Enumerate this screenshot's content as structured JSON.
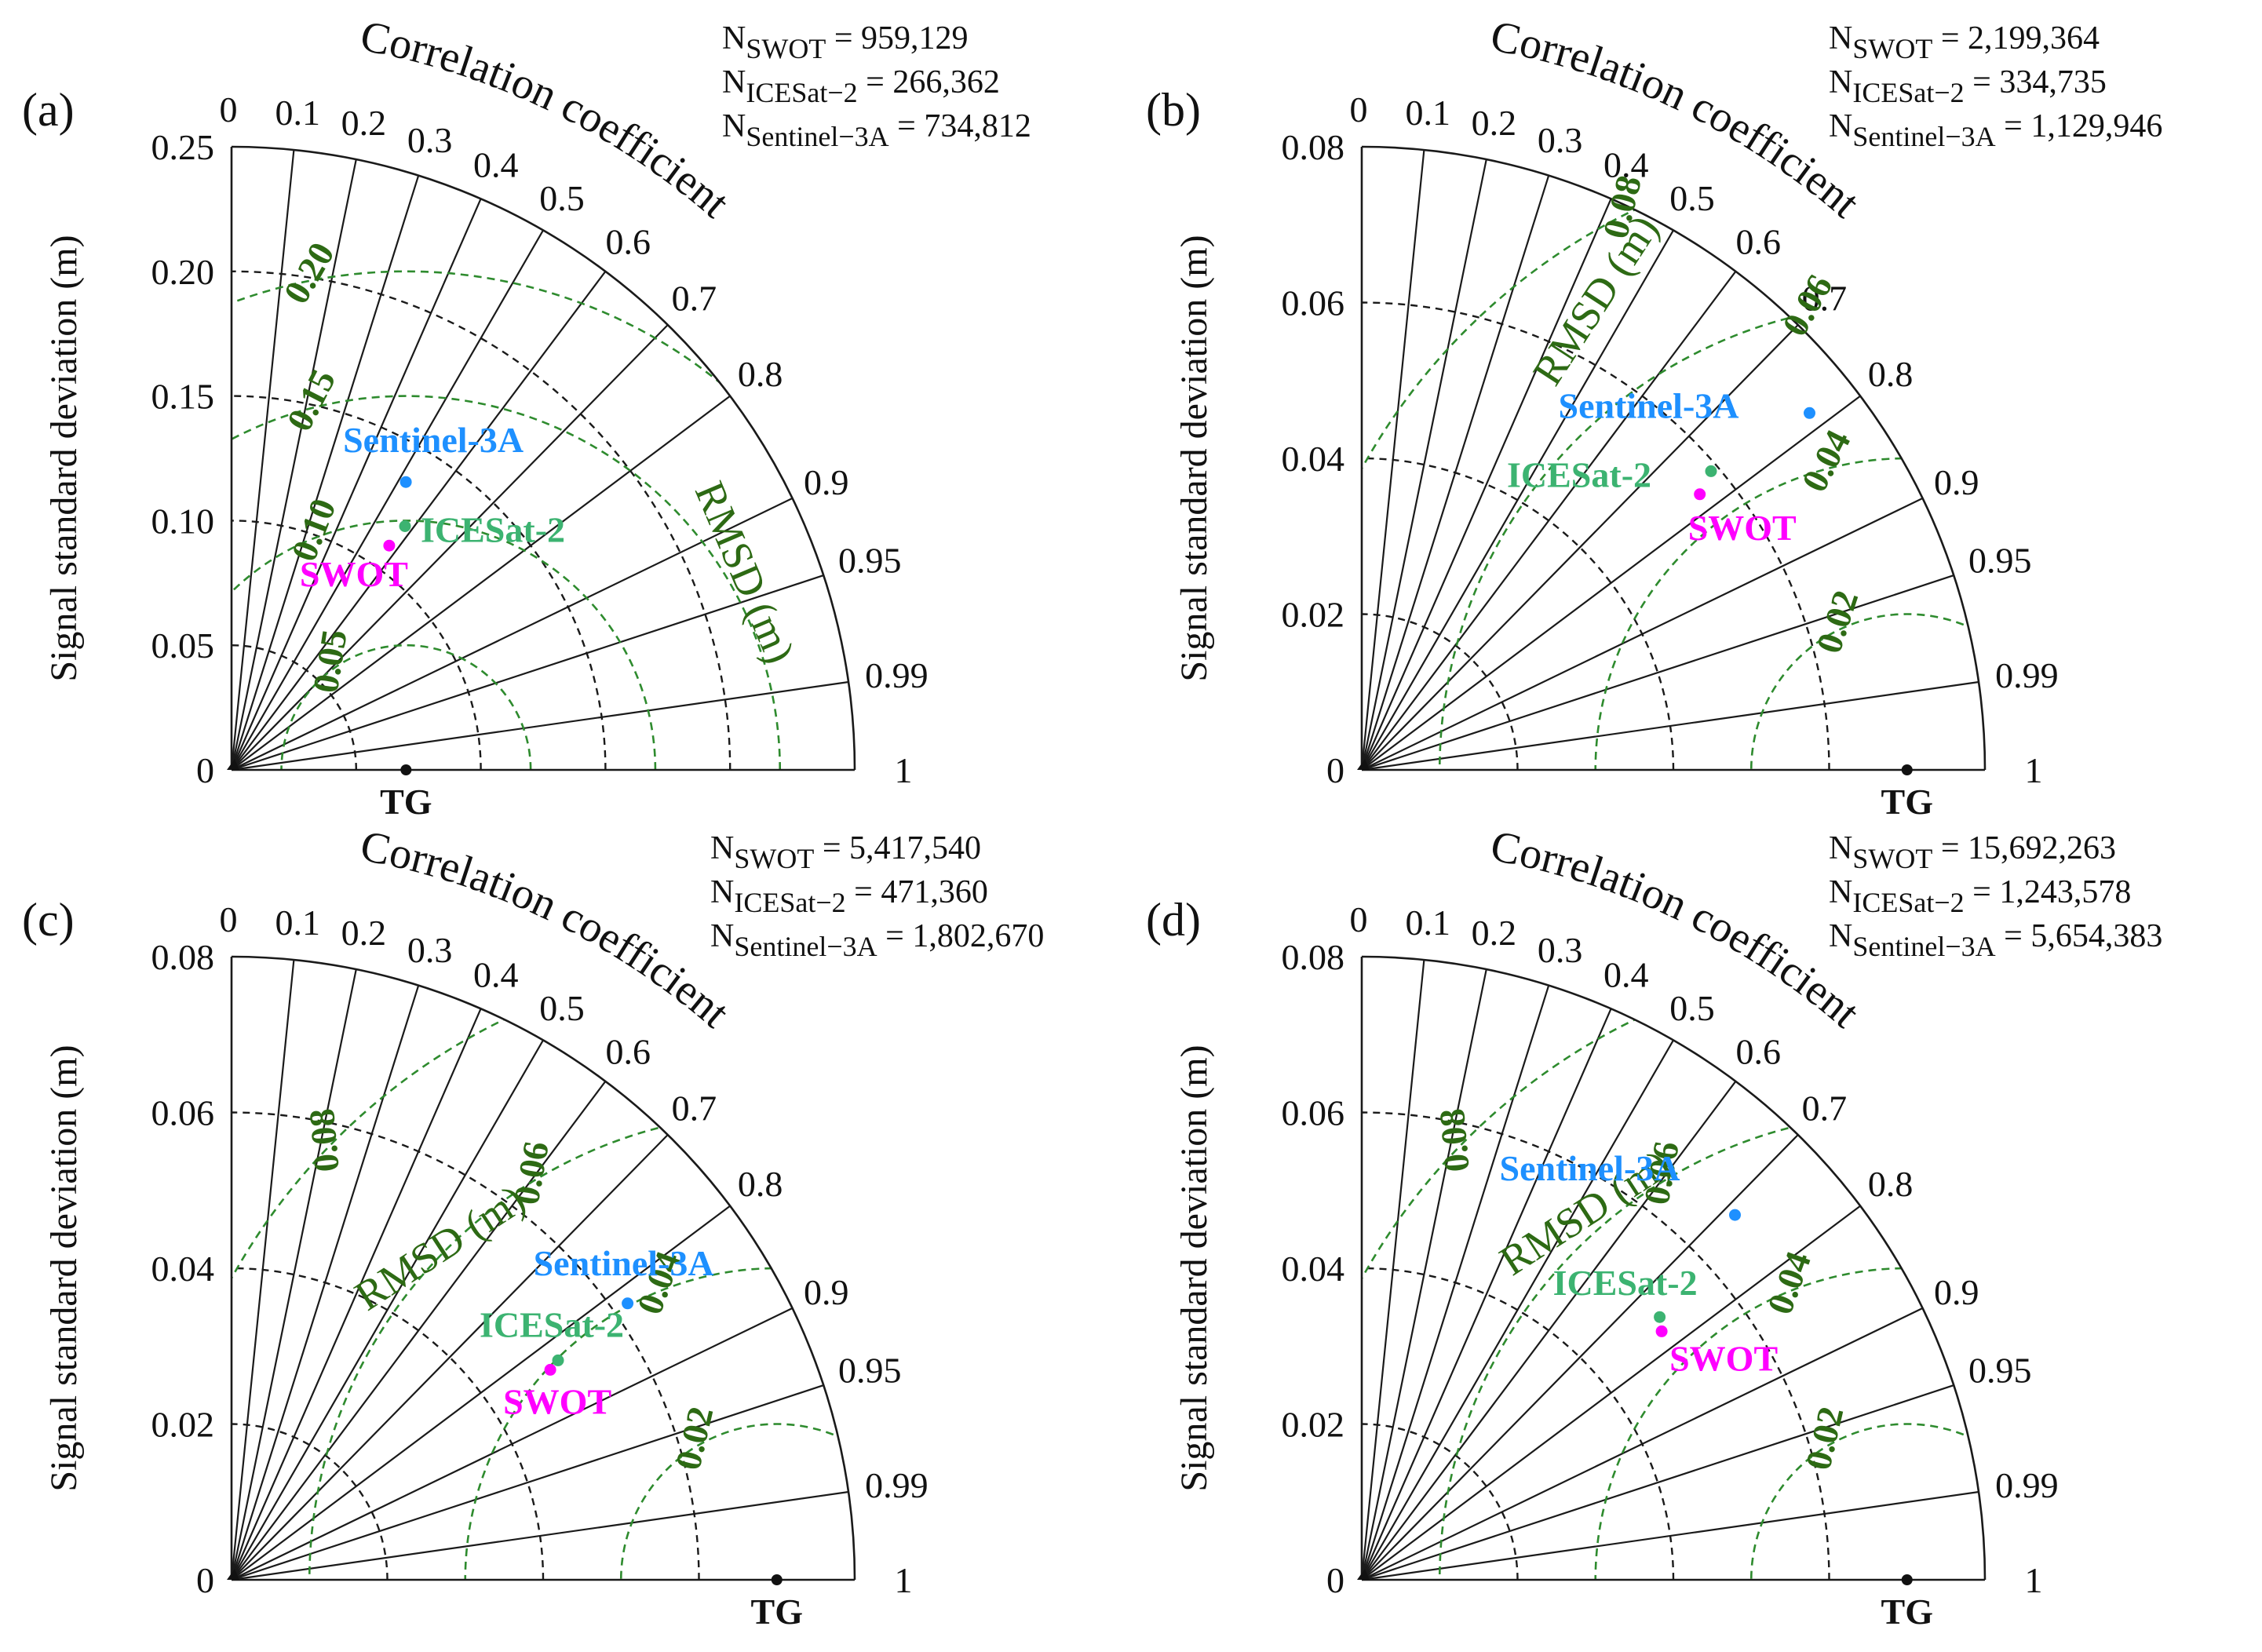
{
  "chart_data": [
    {
      "type": "taylor",
      "panel_label": "(a)",
      "std_max": 0.25,
      "std_ticks": [
        "0",
        "0.05",
        "0.10",
        "0.15",
        "0.20",
        "0.25"
      ],
      "std_tick_values": [
        0,
        0.05,
        0.1,
        0.15,
        0.2,
        0.25
      ],
      "ylabel": "Signal standard deviation (m)",
      "corr_label": "Correlation coefficient",
      "corr_ticks": [
        "0",
        "0.1",
        "0.2",
        "0.3",
        "0.4",
        "0.5",
        "0.6",
        "0.7",
        "0.8",
        "0.9",
        "0.95",
        "0.99",
        "1"
      ],
      "corr_values": [
        0,
        0.1,
        0.2,
        0.3,
        0.4,
        0.5,
        0.6,
        0.7,
        0.8,
        0.9,
        0.95,
        0.99,
        1
      ],
      "rmsd_label": "RMSD (m)",
      "rmsd_values": [
        0.05,
        0.1,
        0.15,
        0.2
      ],
      "rmsd_tick_labels": [
        "0.05",
        "0.10",
        "0.15",
        "0.20"
      ],
      "reference": {
        "name": "TG",
        "std": 0.07
      },
      "points": [
        {
          "name": "SWOT",
          "std": 0.11,
          "corr": 0.575,
          "color": "#ff00ff"
        },
        {
          "name": "ICESat-2",
          "std": 0.12,
          "corr": 0.58,
          "color": "#3cb371"
        },
        {
          "name": "Sentinel-3A",
          "std": 0.135,
          "corr": 0.518,
          "color": "#1e90ff"
        }
      ],
      "counts": [
        {
          "label": "N",
          "sub": "SWOT",
          "value": " = 959,129"
        },
        {
          "label": "N",
          "sub": "ICESat−2",
          "value": " = 266,362"
        },
        {
          "label": "N",
          "sub": "Sentinel−3A",
          "value": " = 734,812"
        }
      ]
    },
    {
      "type": "taylor",
      "panel_label": "(b)",
      "std_max": 0.08,
      "std_ticks": [
        "0",
        "0.02",
        "0.04",
        "0.06",
        "0.08"
      ],
      "std_tick_values": [
        0,
        0.02,
        0.04,
        0.06,
        0.08
      ],
      "ylabel": "Signal standard deviation (m)",
      "corr_label": "Correlation coefficient",
      "corr_ticks": [
        "0",
        "0.1",
        "0.2",
        "0.3",
        "0.4",
        "0.5",
        "0.6",
        "0.7",
        "0.8",
        "0.9",
        "0.95",
        "0.99",
        "1"
      ],
      "corr_values": [
        0,
        0.1,
        0.2,
        0.3,
        0.4,
        0.5,
        0.6,
        0.7,
        0.8,
        0.9,
        0.95,
        0.99,
        1
      ],
      "rmsd_label": "RMSD (m)",
      "rmsd_values": [
        0.02,
        0.04,
        0.06,
        0.08
      ],
      "rmsd_tick_labels": [
        "0.02",
        "0.04",
        "0.06",
        "0.08"
      ],
      "reference": {
        "name": "TG",
        "std": 0.07
      },
      "points": [
        {
          "name": "SWOT",
          "std": 0.056,
          "corr": 0.775,
          "color": "#ff00ff"
        },
        {
          "name": "ICESat-2",
          "std": 0.059,
          "corr": 0.76,
          "color": "#3cb371"
        },
        {
          "name": "Sentinel-3A",
          "std": 0.0735,
          "corr": 0.782,
          "color": "#1e90ff"
        }
      ],
      "counts": [
        {
          "label": "N",
          "sub": "SWOT",
          "value": " = 2,199,364"
        },
        {
          "label": "N",
          "sub": "ICESat−2",
          "value": " = 334,735"
        },
        {
          "label": "N",
          "sub": "Sentinel−3A",
          "value": " = 1,129,946"
        }
      ]
    },
    {
      "type": "taylor",
      "panel_label": "(c)",
      "std_max": 0.08,
      "std_ticks": [
        "0",
        "0.02",
        "0.04",
        "0.06",
        "0.08"
      ],
      "std_tick_values": [
        0,
        0.02,
        0.04,
        0.06,
        0.08
      ],
      "ylabel": "Signal standard deviation (m)",
      "corr_label": "Correlation coefficient",
      "corr_ticks": [
        "0",
        "0.1",
        "0.2",
        "0.3",
        "0.4",
        "0.5",
        "0.6",
        "0.7",
        "0.8",
        "0.9",
        "0.95",
        "0.99",
        "1"
      ],
      "corr_values": [
        0,
        0.1,
        0.2,
        0.3,
        0.4,
        0.5,
        0.6,
        0.7,
        0.8,
        0.9,
        0.95,
        0.99,
        1
      ],
      "rmsd_label": "RMSD (m)",
      "rmsd_values": [
        0.02,
        0.04,
        0.06,
        0.08
      ],
      "rmsd_tick_labels": [
        "0.02",
        "0.04",
        "0.06",
        "0.08"
      ],
      "reference": {
        "name": "TG",
        "std": 0.07
      },
      "points": [
        {
          "name": "SWOT",
          "std": 0.049,
          "corr": 0.835,
          "color": "#ff00ff"
        },
        {
          "name": "ICESat-2",
          "std": 0.0505,
          "corr": 0.83,
          "color": "#3cb371"
        },
        {
          "name": "Sentinel-3A",
          "std": 0.062,
          "corr": 0.82,
          "color": "#1e90ff"
        }
      ],
      "counts": [
        {
          "label": "N",
          "sub": "SWOT",
          "value": " = 5,417,540"
        },
        {
          "label": "N",
          "sub": "ICESat−2",
          "value": " = 471,360"
        },
        {
          "label": "N",
          "sub": "Sentinel−3A",
          "value": " = 1,802,670"
        }
      ]
    },
    {
      "type": "taylor",
      "panel_label": "(d)",
      "std_max": 0.08,
      "std_ticks": [
        "0",
        "0.02",
        "0.04",
        "0.06",
        "0.08"
      ],
      "std_tick_values": [
        0,
        0.02,
        0.04,
        0.06,
        0.08
      ],
      "ylabel": "Signal standard deviation (m)",
      "corr_label": "Correlation coefficient",
      "corr_ticks": [
        "0",
        "0.1",
        "0.2",
        "0.3",
        "0.4",
        "0.5",
        "0.6",
        "0.7",
        "0.8",
        "0.9",
        "0.95",
        "0.99",
        "1"
      ],
      "corr_values": [
        0,
        0.1,
        0.2,
        0.3,
        0.4,
        0.5,
        0.6,
        0.7,
        0.8,
        0.9,
        0.95,
        0.99,
        1
      ],
      "rmsd_label": "RMSD (m)",
      "rmsd_values": [
        0.02,
        0.04,
        0.06,
        0.08
      ],
      "rmsd_tick_labels": [
        "0.02",
        "0.04",
        "0.06",
        "0.08"
      ],
      "reference": {
        "name": "TG",
        "std": 0.07
      },
      "points": [
        {
          "name": "SWOT",
          "std": 0.05,
          "corr": 0.77,
          "color": "#ff00ff"
        },
        {
          "name": "ICESat-2",
          "std": 0.051,
          "corr": 0.75,
          "color": "#3cb371"
        },
        {
          "name": "Sentinel-3A",
          "std": 0.067,
          "corr": 0.715,
          "color": "#1e90ff"
        }
      ],
      "counts": [
        {
          "label": "N",
          "sub": "SWOT",
          "value": " = 15,692,263"
        },
        {
          "label": "N",
          "sub": "ICESat−2",
          "value": " = 1,243,578"
        },
        {
          "label": "N",
          "sub": "Sentinel−3A",
          "value": " = 5,654,383"
        }
      ]
    }
  ]
}
